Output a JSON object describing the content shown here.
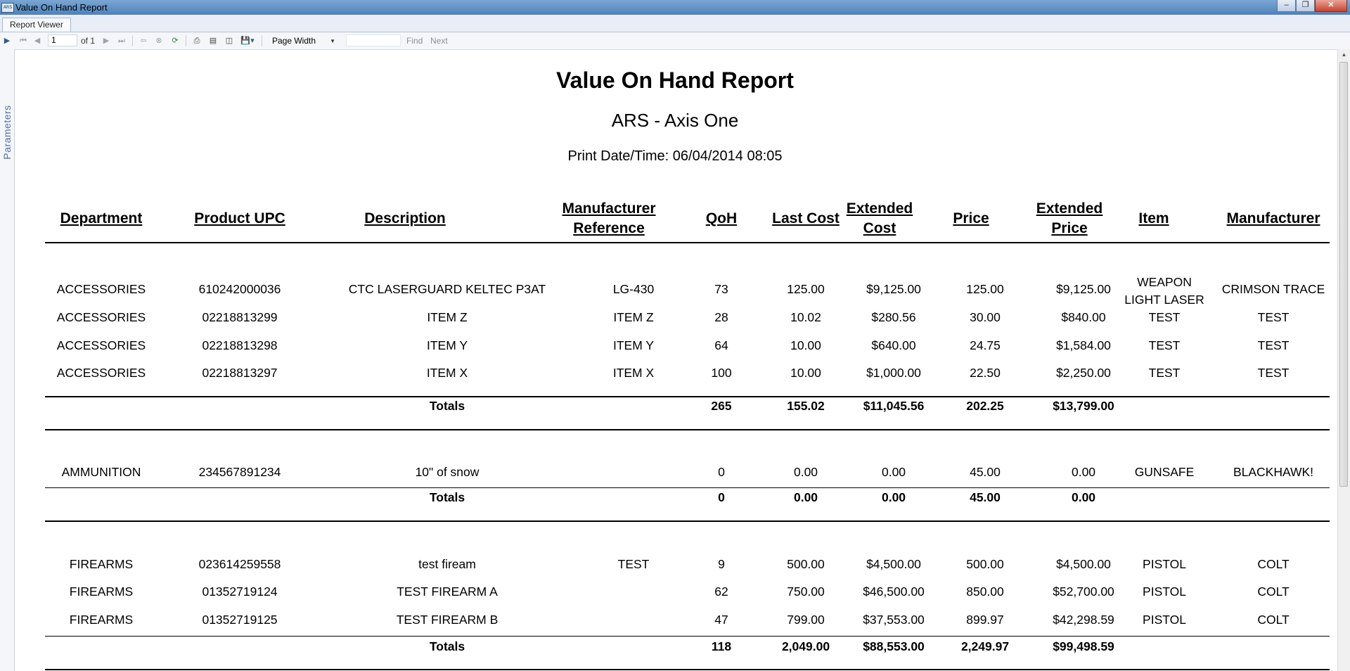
{
  "window": {
    "title": "Value On Hand Report",
    "icon": "report-app-icon",
    "icon_text": "ARS"
  },
  "tabs": [
    {
      "label": "Report Viewer"
    }
  ],
  "toolbar": {
    "page_value": "1",
    "page_of": "of 1",
    "zoom": "Page Width",
    "find_placeholder": "",
    "find_label": "Find",
    "next_label": "Next"
  },
  "sidebar": {
    "parameters_label": "Parameters"
  },
  "report": {
    "title": "Value On Hand Report",
    "company": "ARS - Axis One",
    "print_datetime": "Print Date/Time: 06/04/2014 08:05",
    "columns": [
      "Department",
      "Product UPC",
      "Description",
      "Manufacturer Reference",
      "QoH",
      "Last Cost",
      "Extended Cost",
      "Price",
      "Extended Price",
      "Item",
      "Manufacturer"
    ],
    "groups": [
      {
        "rows": [
          [
            "ACCESSORIES",
            "610242000036",
            "CTC LASERGUARD KELTEC P3AT",
            "LG-430",
            "73",
            "125.00",
            "$9,125.00",
            "125.00",
            "$9,125.00",
            "WEAPON LIGHT LASER",
            "CRIMSON TRACE"
          ],
          [
            "ACCESSORIES",
            "02218813299",
            "ITEM Z",
            "ITEM Z",
            "28",
            "10.02",
            "$280.56",
            "30.00",
            "$840.00",
            "TEST",
            "TEST"
          ],
          [
            "ACCESSORIES",
            "02218813298",
            "ITEM Y",
            "ITEM Y",
            "64",
            "10.00",
            "$640.00",
            "24.75",
            "$1,584.00",
            "TEST",
            "TEST"
          ],
          [
            "ACCESSORIES",
            "02218813297",
            "ITEM X",
            "ITEM X",
            "100",
            "10.00",
            "$1,000.00",
            "22.50",
            "$2,250.00",
            "TEST",
            "TEST"
          ]
        ],
        "totals": {
          "label": "Totals",
          "qoh": "265",
          "last_cost": "155.02",
          "extended_cost": "$11,045.56",
          "price": "202.25",
          "extended_price": "$13,799.00"
        }
      },
      {
        "rows": [
          [
            "AMMUNITION",
            "234567891234",
            "10\" of snow",
            "",
            "0",
            "0.00",
            "0.00",
            "45.00",
            "0.00",
            "GUNSAFE",
            "BLACKHAWK!"
          ]
        ],
        "totals": {
          "label": "Totals",
          "qoh": "0",
          "last_cost": "0.00",
          "extended_cost": "0.00",
          "price": "45.00",
          "extended_price": "0.00"
        }
      },
      {
        "rows": [
          [
            "FIREARMS",
            "023614259558",
            "test fiream",
            "TEST",
            "9",
            "500.00",
            "$4,500.00",
            "500.00",
            "$4,500.00",
            "PISTOL",
            "COLT"
          ],
          [
            "FIREARMS",
            "01352719124",
            "TEST FIREARM A",
            "",
            "62",
            "750.00",
            "$46,500.00",
            "850.00",
            "$52,700.00",
            "PISTOL",
            "COLT"
          ],
          [
            "FIREARMS",
            "01352719125",
            "TEST FIREARM B",
            "",
            "47",
            "799.00",
            "$37,553.00",
            "899.97",
            "$42,298.59",
            "PISTOL",
            "COLT"
          ]
        ],
        "totals": {
          "label": "Totals",
          "qoh": "118",
          "last_cost": "2,049.00",
          "extended_cost": "$88,553.00",
          "price": "2,249.97",
          "extended_price": "$99,498.59"
        }
      }
    ]
  }
}
